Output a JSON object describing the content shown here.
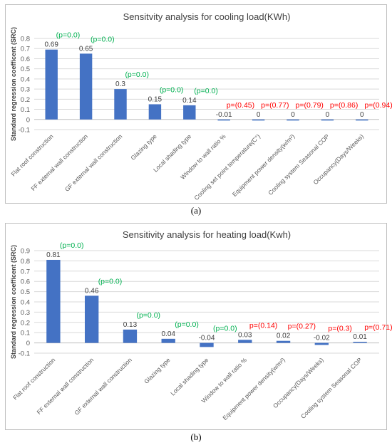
{
  "chart_data": [
    {
      "type": "bar",
      "title": "Sensitvity analysis for cooling load(KWh)",
      "ylabel": "Standard regression coefficent (SRC)",
      "ylim": [
        -0.1,
        0.8
      ],
      "yticks": [
        "-0.1",
        "0",
        "0.1",
        "0.2",
        "0.3",
        "0.4",
        "0.5",
        "0.6",
        "0.7",
        "0.8"
      ],
      "grid": true,
      "bar_color": "#4472c4",
      "pvalue_colors": {
        "significant": "#00b050",
        "not_significant": "#ff0000"
      },
      "categories": [
        "Flat roof construction",
        "FF external wall construction",
        "GF external wall construction",
        "Glazing type",
        "Local shading type",
        "Window to wall ratio %",
        "Cooling set point temperature(C°)",
        "Equipment power density(w/m²)",
        "Cooling system Seasonal COP",
        "Occupancy(Days/Weeks)"
      ],
      "values": [
        0.69,
        0.65,
        0.3,
        0.15,
        0.14,
        -0.01,
        0,
        0,
        0,
        0
      ],
      "value_labels": [
        "0.69",
        "0.65",
        "0.3",
        "0.15",
        "0.14",
        "-0.01",
        "0",
        "0",
        "0",
        "0"
      ],
      "p_labels": [
        "(p=0.0)",
        "(p=0.0)",
        "(p=0.0)",
        "(p=0.0)",
        "(p=0.0)",
        "p=(0.45)",
        "p=(0.77)",
        "p=(0.79)",
        "p=(0.86)",
        "p=(0.94)"
      ],
      "p_significant": [
        true,
        true,
        true,
        true,
        true,
        false,
        false,
        false,
        false,
        false
      ],
      "caption": "(a)"
    },
    {
      "type": "bar",
      "title": "Sensitivity analysis for heating load(Kwh)",
      "ylabel": "Standard regression coefficent (SRC)",
      "ylim": [
        -0.1,
        0.9
      ],
      "yticks": [
        "-0.1",
        "0",
        "0.1",
        "0.2",
        "0.3",
        "0.4",
        "0.5",
        "0.6",
        "0.7",
        "0.8",
        "0.9"
      ],
      "grid": true,
      "bar_color": "#4472c4",
      "pvalue_colors": {
        "significant": "#00b050",
        "not_significant": "#ff0000"
      },
      "categories": [
        "Flat roof construction",
        "FF external wall construction",
        "GF external wall construction",
        "Glazing type",
        "Local shading type",
        "Window to wall ratio %",
        "Equipment power density(w/m²)",
        "Occupancy(Days/Weeks)",
        "Cooling system Seasonal COP"
      ],
      "values": [
        0.81,
        0.46,
        0.13,
        0.04,
        -0.04,
        0.03,
        0.02,
        -0.02,
        0.01
      ],
      "value_labels": [
        "0.81",
        "0.46",
        "0.13",
        "0.04",
        "-0.04",
        "0.03",
        "0.02",
        "-0.02",
        "0.01"
      ],
      "p_labels": [
        "(p=0.0)",
        "(p=0.0)",
        "(p=0.0)",
        "(p=0.0)",
        "(p=0.0)",
        "p=(0.14)",
        "p=(0.27)",
        "p=(0.3)",
        "p=(0.71)"
      ],
      "p_significant": [
        true,
        true,
        true,
        true,
        true,
        false,
        false,
        false,
        false
      ],
      "caption": "(b)"
    }
  ]
}
